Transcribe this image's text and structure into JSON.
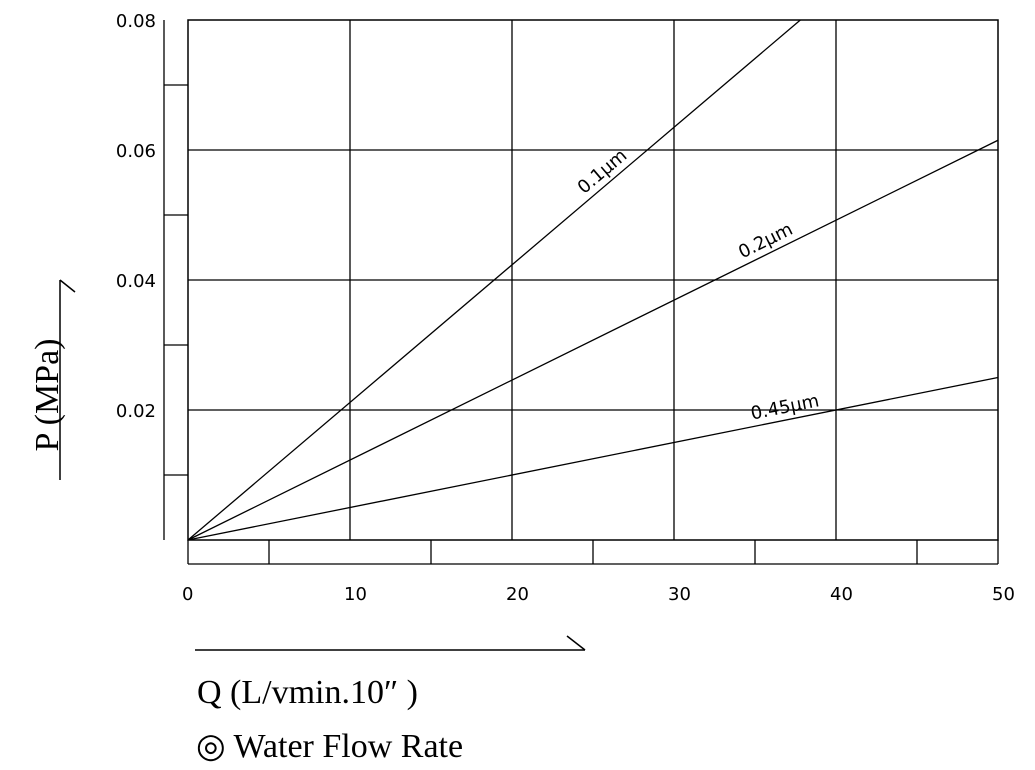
{
  "chart_data": {
    "type": "line",
    "xlabel": "Q (L/vmin.10″ )",
    "ylabel": "P (MPa)",
    "caption": "◎ Water Flow Rate",
    "xlim": [
      0,
      50
    ],
    "ylim": [
      0,
      0.08
    ],
    "x_ticks": [
      0,
      10,
      20,
      30,
      40,
      50
    ],
    "x_tick_labels": [
      "0",
      "10",
      "20",
      "30",
      "40",
      "50"
    ],
    "x_minor_ticks": [
      5,
      15,
      25,
      35,
      45
    ],
    "y_ticks": [
      0.02,
      0.04,
      0.06,
      0.08
    ],
    "y_tick_labels": [
      "0.02",
      "0.04",
      "0.06",
      "0.08"
    ],
    "y_minor_ticks": [
      0.01,
      0.03,
      0.05,
      0.07
    ],
    "grid": true,
    "series": [
      {
        "name": "0.1μm",
        "x": [
          0,
          37.8
        ],
        "y": [
          0,
          0.08
        ],
        "label_at": 0.27
      },
      {
        "name": "0.2μm",
        "x": [
          0,
          50
        ],
        "y": [
          0,
          0.0615
        ],
        "label_at": 0.3
      },
      {
        "name": "0.45μm",
        "x": [
          0,
          50
        ],
        "y": [
          0,
          0.025
        ],
        "label_at": 0.32
      }
    ]
  }
}
